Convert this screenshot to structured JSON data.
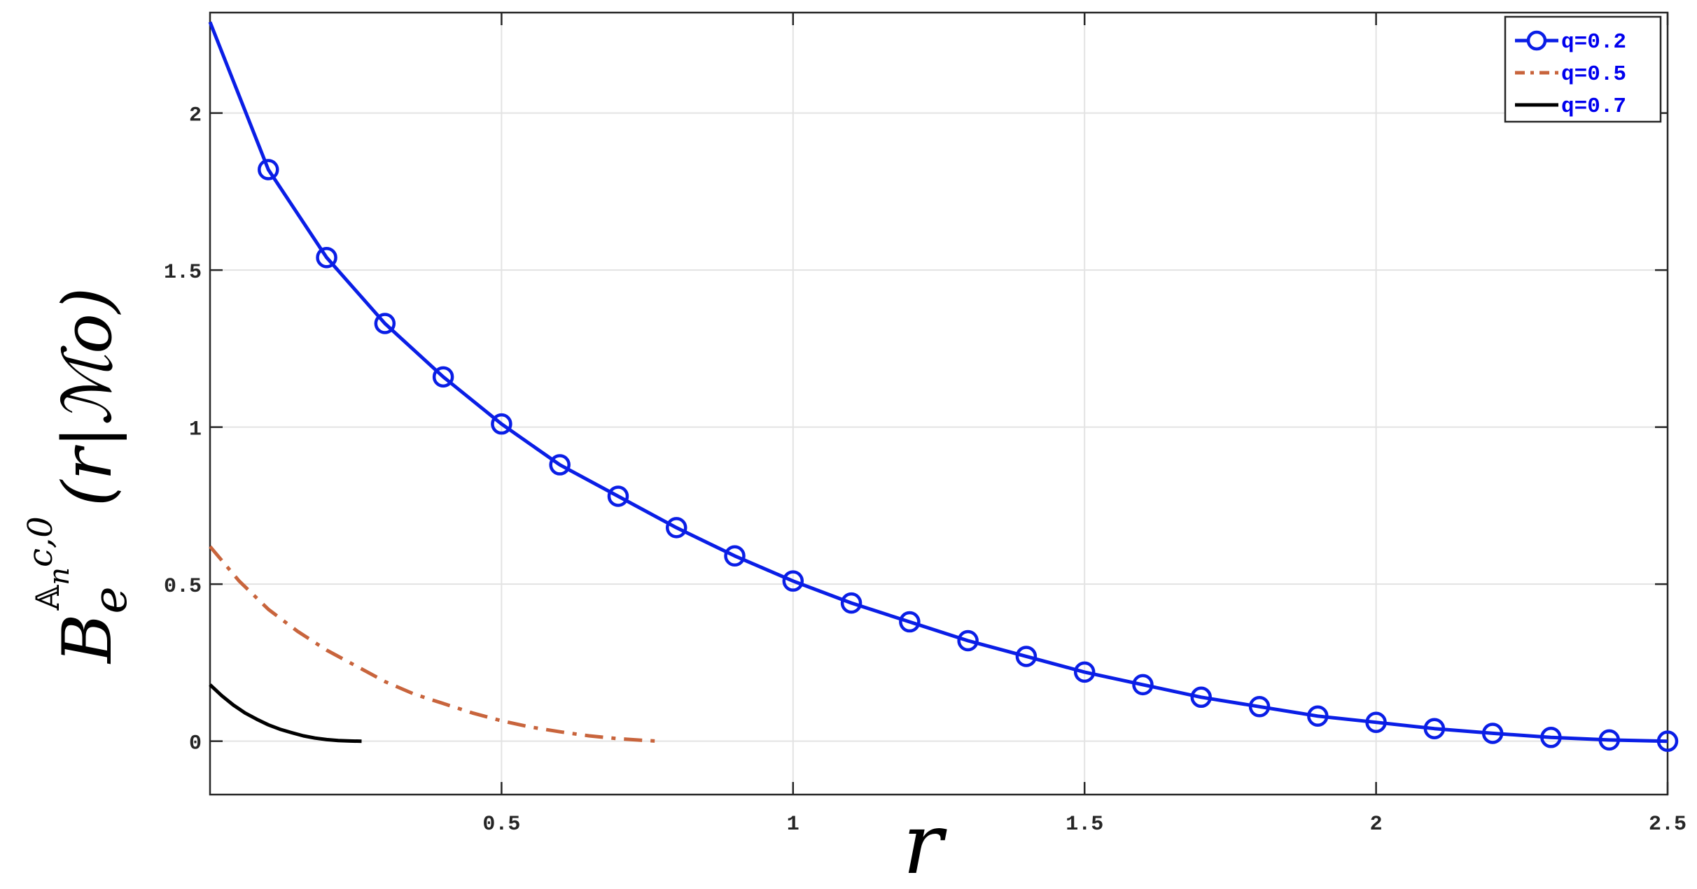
{
  "chart_data": {
    "type": "line",
    "xlabel": "r",
    "ylabel": {
      "base": "B",
      "sub": "e",
      "sup_script": "𝔸",
      "sup_script_sub": "n",
      "sup_tail": "c,0",
      "argument": "(r|ℳo)"
    },
    "xlim": [
      0,
      2.5
    ],
    "ylim": [
      -0.17,
      2.32
    ],
    "x_ticks": [
      0.5,
      1,
      1.5,
      2,
      2.5
    ],
    "x_tick_labels": [
      "0.5",
      "1",
      "1.5",
      "2",
      "2.5"
    ],
    "y_ticks": [
      0,
      0.5,
      1,
      1.5,
      2
    ],
    "y_tick_labels": [
      "0",
      "0.5",
      "1",
      "1.5",
      "2"
    ],
    "grid": true,
    "legend_position": "top-right",
    "series": [
      {
        "name": "q=0.2",
        "color": "#0a1ee6",
        "line_style": "solid",
        "marker": "circle",
        "x": [
          0,
          0.1,
          0.2,
          0.3,
          0.4,
          0.5,
          0.6,
          0.7,
          0.8,
          0.9,
          1.0,
          1.1,
          1.2,
          1.3,
          1.4,
          1.5,
          1.6,
          1.7,
          1.8,
          1.9,
          2.0,
          2.1,
          2.2,
          2.3,
          2.4,
          2.5
        ],
        "y": [
          2.29,
          1.82,
          1.54,
          1.33,
          1.16,
          1.01,
          0.88,
          0.78,
          0.68,
          0.59,
          0.51,
          0.44,
          0.38,
          0.32,
          0.27,
          0.22,
          0.18,
          0.14,
          0.11,
          0.08,
          0.06,
          0.04,
          0.025,
          0.012,
          0.004,
          0.0
        ],
        "marker_x": [
          0.1,
          0.2,
          0.3,
          0.4,
          0.5,
          0.6,
          0.7,
          0.8,
          0.9,
          1.0,
          1.1,
          1.2,
          1.3,
          1.4,
          1.5,
          1.6,
          1.7,
          1.8,
          1.9,
          2.0,
          2.1,
          2.2,
          2.3,
          2.4,
          2.5
        ]
      },
      {
        "name": "q=0.5",
        "color": "#c8643c",
        "line_style": "dashdot",
        "marker": "none",
        "x": [
          0,
          0.05,
          0.1,
          0.15,
          0.2,
          0.25,
          0.3,
          0.35,
          0.4,
          0.45,
          0.5,
          0.55,
          0.6,
          0.65,
          0.7,
          0.75,
          0.77
        ],
        "y": [
          0.62,
          0.51,
          0.42,
          0.35,
          0.29,
          0.24,
          0.19,
          0.15,
          0.12,
          0.09,
          0.065,
          0.045,
          0.03,
          0.017,
          0.008,
          0.002,
          0.0
        ]
      },
      {
        "name": "q=0.7",
        "color": "#000000",
        "line_style": "solid",
        "marker": "none",
        "x": [
          0,
          0.02,
          0.04,
          0.06,
          0.08,
          0.1,
          0.12,
          0.14,
          0.16,
          0.18,
          0.2,
          0.22,
          0.24,
          0.26
        ],
        "y": [
          0.18,
          0.145,
          0.115,
          0.09,
          0.07,
          0.052,
          0.038,
          0.027,
          0.017,
          0.01,
          0.005,
          0.002,
          0.0005,
          0.0
        ]
      }
    ]
  }
}
